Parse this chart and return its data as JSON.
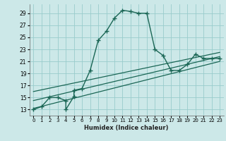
{
  "xlabel": "Humidex (Indice chaleur)",
  "bg_color": "#cce8e8",
  "grid_color": "#99cccc",
  "line_color": "#1a6655",
  "xlim": [
    -0.5,
    23.5
  ],
  "ylim": [
    12,
    30.5
  ],
  "yticks": [
    13,
    15,
    17,
    19,
    21,
    23,
    25,
    27,
    29
  ],
  "xticks": [
    0,
    1,
    2,
    3,
    4,
    5,
    6,
    7,
    8,
    9,
    10,
    11,
    12,
    13,
    14,
    15,
    16,
    17,
    18,
    19,
    20,
    21,
    22,
    23
  ],
  "main_curve_x": [
    0,
    1,
    2,
    3,
    4,
    4,
    5,
    5,
    6,
    7,
    8,
    9,
    10,
    11,
    12,
    13,
    14,
    15,
    16,
    17,
    18,
    19,
    20,
    21,
    22,
    23
  ],
  "main_curve_y": [
    13,
    13.5,
    15,
    15,
    14.5,
    13,
    15.2,
    16.2,
    16.5,
    19.5,
    24.5,
    26,
    28.2,
    29.5,
    29.3,
    29.0,
    29.0,
    23.0,
    22.0,
    19.5,
    19.5,
    20.5,
    22.2,
    21.5,
    21.5,
    21.5
  ],
  "line1_x": [
    0,
    23
  ],
  "line1_y": [
    13.2,
    21.0
  ],
  "line2_x": [
    0,
    23
  ],
  "line2_y": [
    14.5,
    21.8
  ],
  "line3_x": [
    0,
    23
  ],
  "line3_y": [
    16.0,
    22.5
  ],
  "marker_x": [
    0,
    1,
    2,
    3,
    4,
    5,
    6,
    7,
    8,
    9,
    10,
    11,
    12,
    13,
    14,
    15,
    16,
    17,
    18,
    19,
    20,
    21,
    22,
    23
  ],
  "marker_y": [
    13,
    13.5,
    15,
    15,
    13,
    16.2,
    16.5,
    19.5,
    24.5,
    26,
    28.2,
    29.5,
    29.3,
    29.0,
    29.0,
    23.0,
    22.0,
    19.5,
    19.5,
    20.5,
    22.2,
    21.5,
    21.5,
    21.5
  ]
}
